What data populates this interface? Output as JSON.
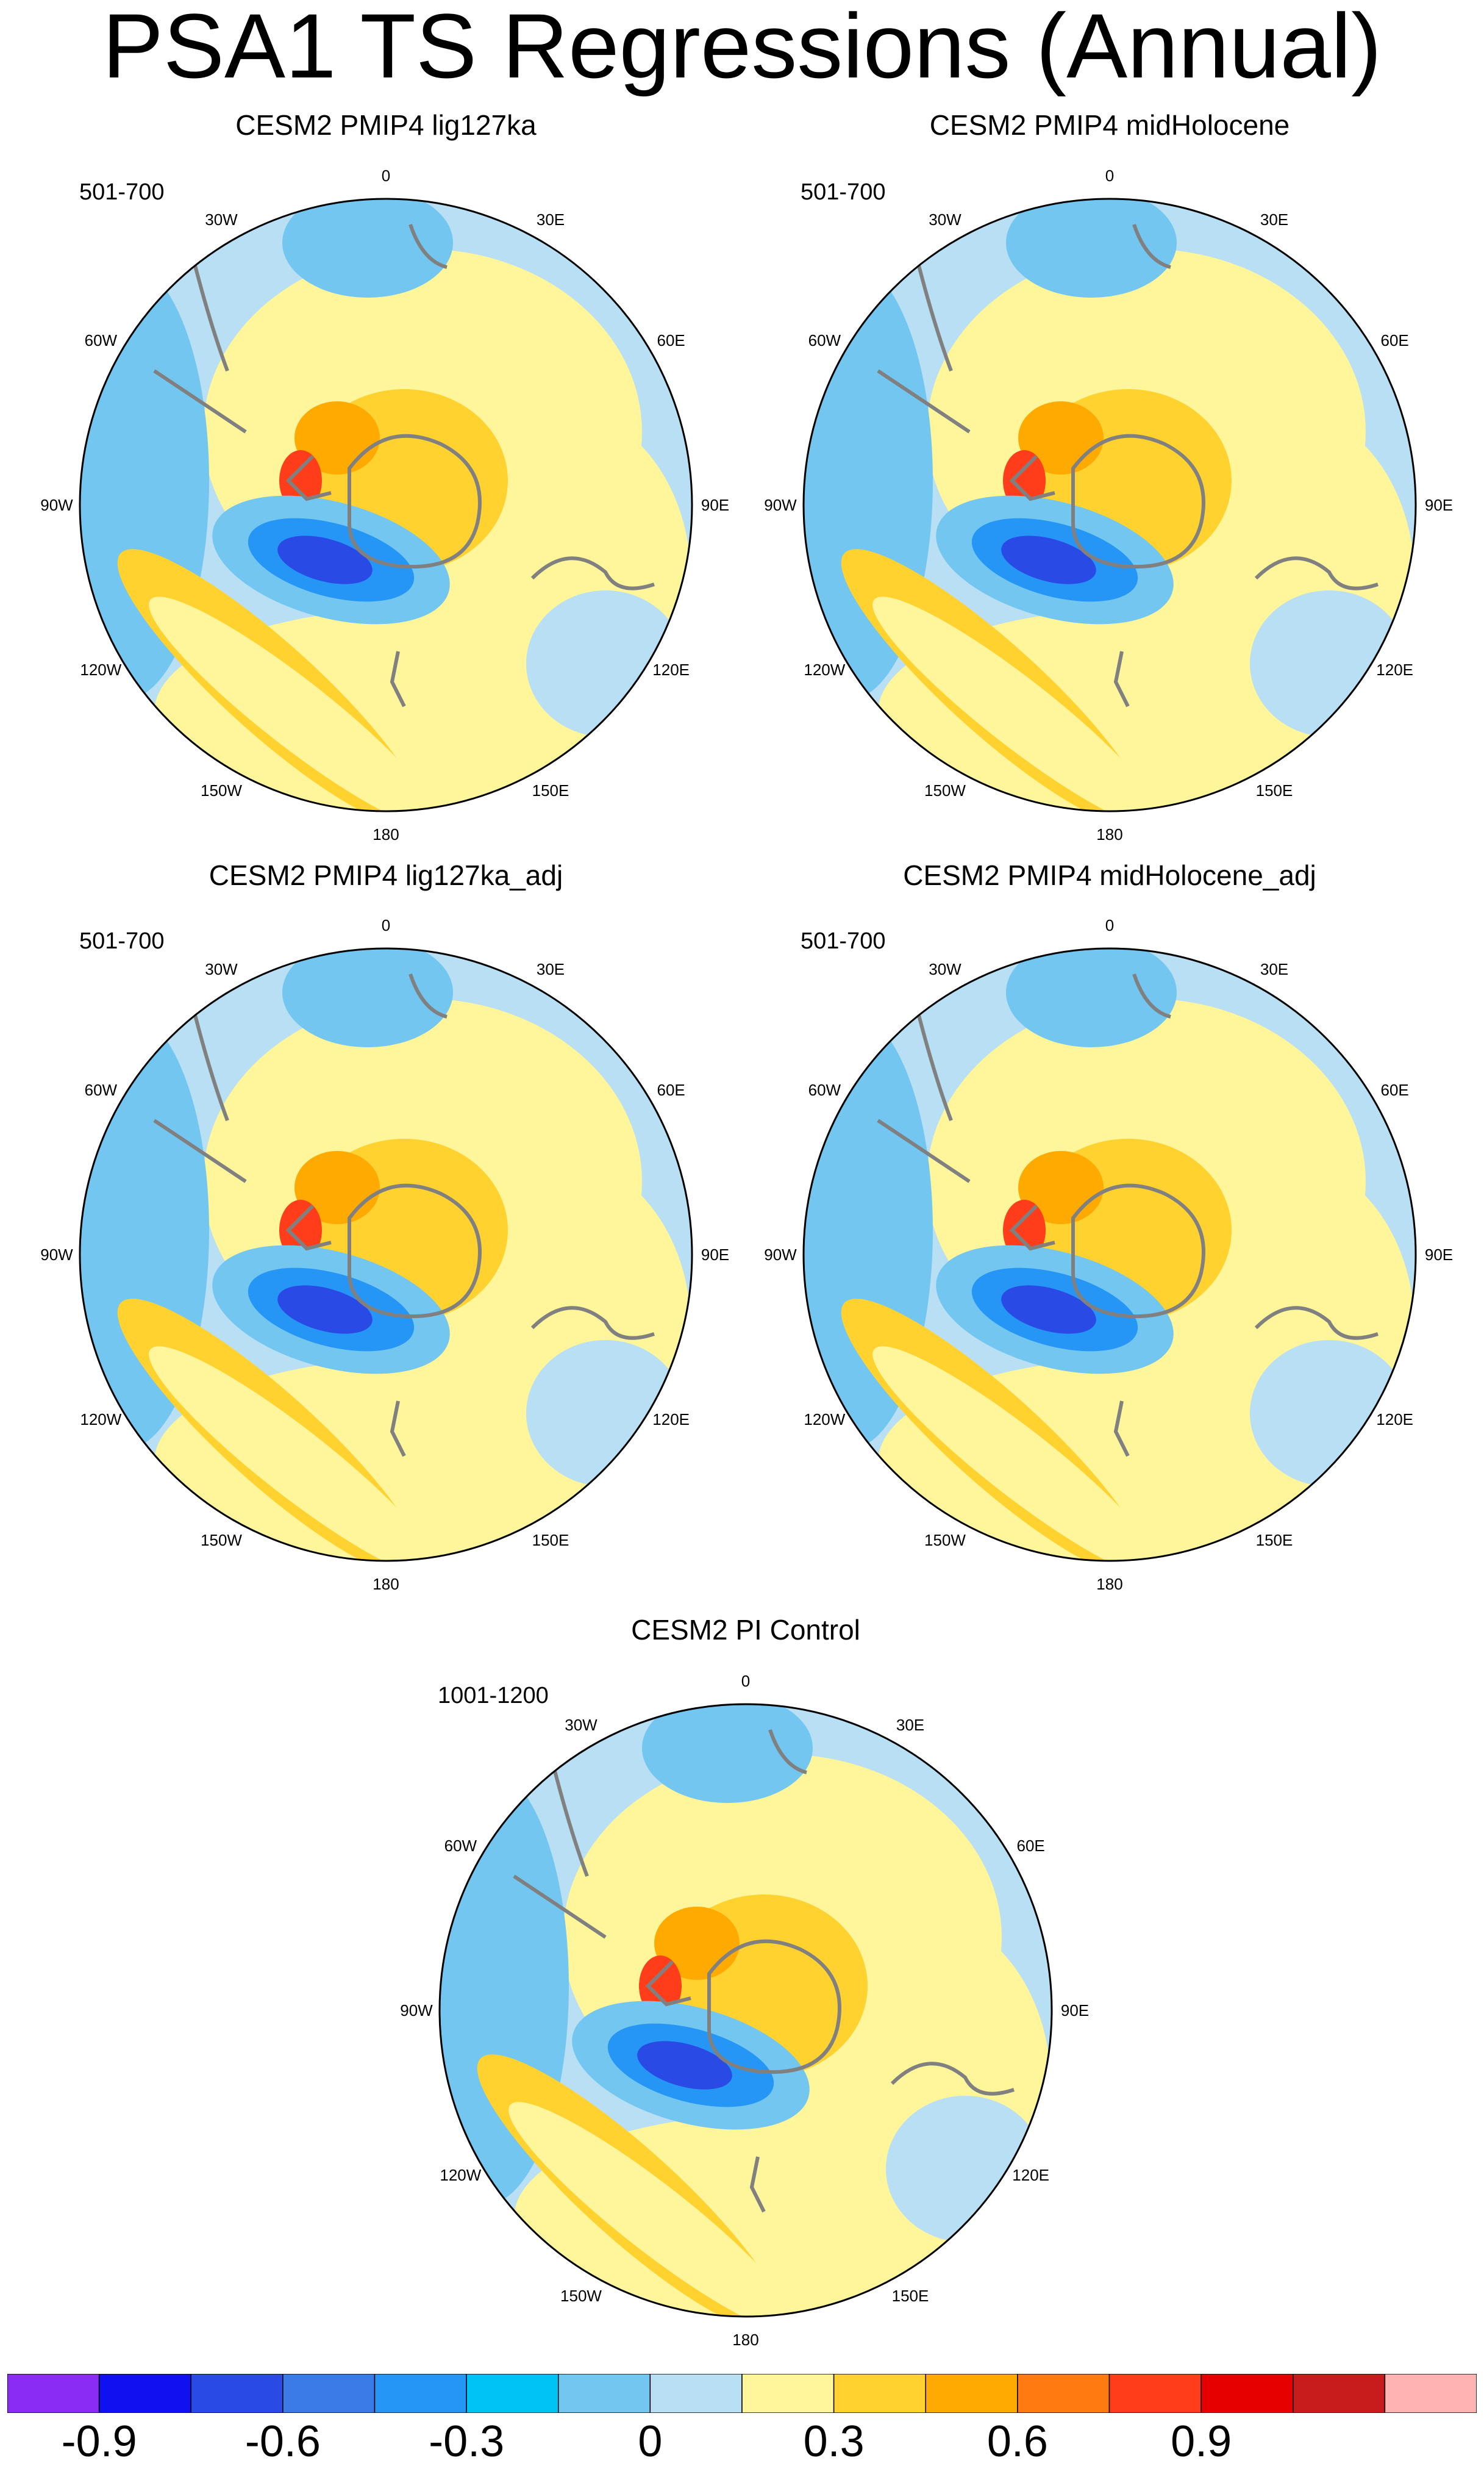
{
  "title": "PSA1 TS Regressions (Annual)",
  "colors": {
    "land_outline": "#808080",
    "frame": "#000000",
    "background": "#b8dff4"
  },
  "panels": [
    {
      "title": "CESM2 PMIP4 lig127ka",
      "period": "501-700"
    },
    {
      "title": "CESM2 PMIP4 midHolocene",
      "period": "501-700"
    },
    {
      "title": "CESM2 PMIP4 lig127ka_adj",
      "period": "501-700"
    },
    {
      "title": "CESM2 PMIP4 midHolocene_adj",
      "period": "501-700"
    },
    {
      "title": "CESM2 PI Control",
      "period": "1001-1200"
    }
  ],
  "longitude_labels": [
    "0",
    "30E",
    "60E",
    "90E",
    "120E",
    "150E",
    "180",
    "150W",
    "120W",
    "90W",
    "60W",
    "30W"
  ],
  "colorbar": {
    "colors": [
      "#8b2cf5",
      "#1010f0",
      "#2a4ae6",
      "#3b7be7",
      "#2596f5",
      "#00c3f5",
      "#72c6f0",
      "#b8dff4",
      "#fff59a",
      "#ffd230",
      "#ffaa00",
      "#ff7a10",
      "#ff3d1a",
      "#e60000",
      "#c81c1c",
      "#ffb3b3"
    ],
    "tick_labels": [
      "-0.9",
      "-0.6",
      "-0.3",
      "0",
      "0.3",
      "0.6",
      "0.9"
    ],
    "tick_values": [
      -0.9,
      -0.6,
      -0.3,
      0,
      0.3,
      0.6,
      0.9
    ]
  }
}
